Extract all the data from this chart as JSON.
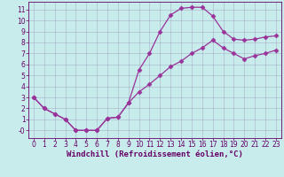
{
  "xlabel": "Windchill (Refroidissement éolien,°C)",
  "bg_color": "#c8ecec",
  "line_color": "#993399",
  "grid_color": "#9999bb",
  "xlim": [
    -0.5,
    23.5
  ],
  "ylim": [
    -0.7,
    11.7
  ],
  "xticks": [
    0,
    1,
    2,
    3,
    4,
    5,
    6,
    7,
    8,
    9,
    10,
    11,
    12,
    13,
    14,
    15,
    16,
    17,
    18,
    19,
    20,
    21,
    22,
    23
  ],
  "yticks": [
    0,
    1,
    2,
    3,
    4,
    5,
    6,
    7,
    8,
    9,
    10,
    11
  ],
  "ytick_labels": [
    "-0",
    "1",
    "2",
    "3",
    "4",
    "5",
    "6",
    "7",
    "8",
    "9",
    "10",
    "11"
  ],
  "line1_x": [
    0,
    1,
    2,
    3,
    4,
    5,
    6,
    7,
    8,
    9,
    10,
    11,
    12,
    13,
    14,
    15,
    16,
    17,
    18,
    19,
    20,
    21,
    22,
    23
  ],
  "line1_y": [
    3.0,
    2.0,
    1.5,
    1.0,
    0.0,
    0.0,
    0.0,
    1.1,
    1.2,
    2.5,
    5.5,
    7.0,
    9.0,
    10.5,
    11.1,
    11.2,
    11.2,
    10.4,
    9.0,
    8.3,
    8.2,
    8.3,
    8.5,
    8.6
  ],
  "line2_x": [
    0,
    1,
    2,
    3,
    4,
    5,
    6,
    7,
    8,
    9,
    10,
    11,
    12,
    13,
    14,
    15,
    16,
    17,
    18,
    19,
    20,
    21,
    22,
    23
  ],
  "line2_y": [
    3.0,
    2.0,
    1.5,
    1.0,
    0.0,
    0.0,
    0.0,
    1.1,
    1.2,
    2.5,
    3.5,
    4.2,
    5.0,
    5.8,
    6.3,
    7.0,
    7.5,
    8.2,
    7.5,
    7.0,
    6.5,
    6.8,
    7.0,
    7.3
  ],
  "marker": "D",
  "markersize": 2.5,
  "linewidth": 0.9,
  "tick_fontsize": 5.5,
  "label_fontsize": 6.5,
  "tick_color": "#660066",
  "label_color": "#660066",
  "spine_color": "#660066"
}
